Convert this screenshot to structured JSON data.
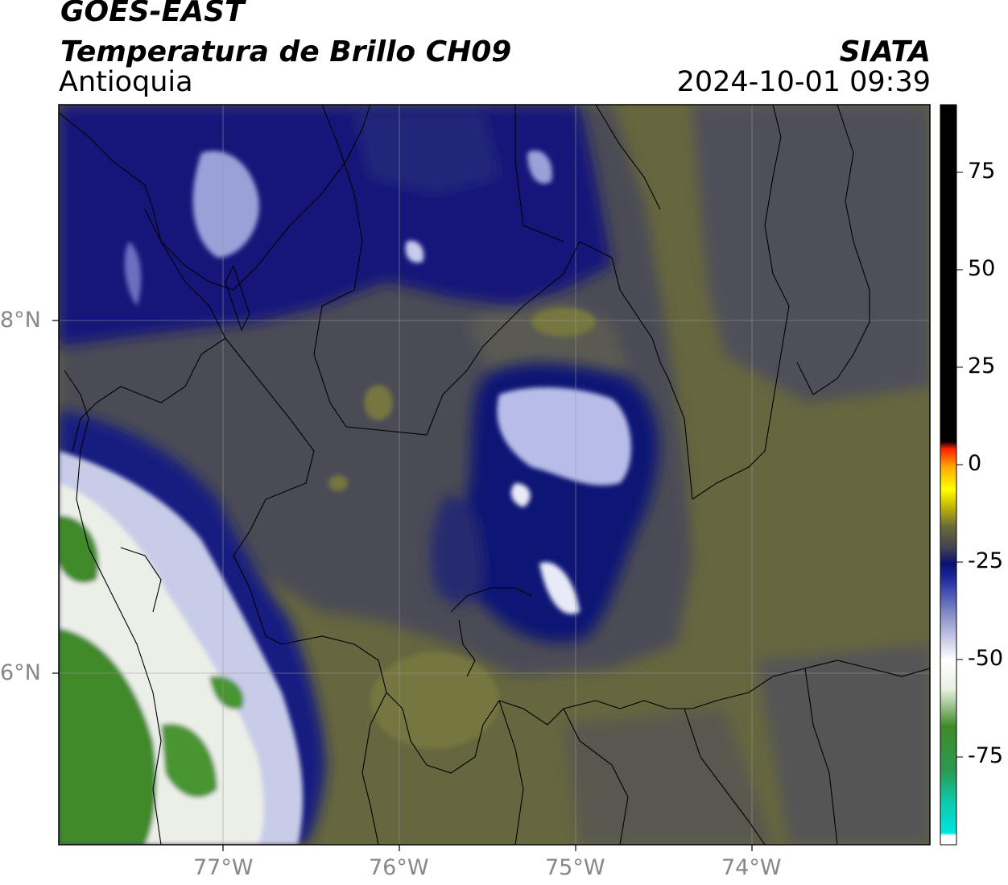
{
  "header": {
    "satellite": "GOES-EAST",
    "product": "Temperatura de Brillo CH09",
    "region": "Antioquia",
    "organization": "SIATA",
    "timestamp": "2024-10-01 09:39"
  },
  "map": {
    "lat_ticks": [
      {
        "label": "8°N",
        "value": 8
      },
      {
        "label": "6°N",
        "value": 6
      }
    ],
    "lon_ticks": [
      {
        "label": "77°W",
        "value": -77
      },
      {
        "label": "76°W",
        "value": -76
      },
      {
        "label": "75°W",
        "value": -75
      },
      {
        "label": "74°W",
        "value": -74
      }
    ],
    "colors": {
      "warm_surface": "#6b6b45",
      "mid_cloud": "#4f4f5a",
      "cold_cloud": "#101570",
      "very_cold": "#d8dcf0",
      "coldest": "#3f8a2a",
      "border": "#000000",
      "grid": "#9a9a9a"
    }
  },
  "colorbar": {
    "ticks": [
      {
        "label": "75",
        "value": 75
      },
      {
        "label": "50",
        "value": 50
      },
      {
        "label": "25",
        "value": 25
      },
      {
        "label": "0",
        "value": 0
      },
      {
        "label": "-25",
        "value": -25
      },
      {
        "label": "-50",
        "value": -50
      },
      {
        "label": "-75",
        "value": -75
      }
    ],
    "range": [
      -95,
      92
    ]
  }
}
